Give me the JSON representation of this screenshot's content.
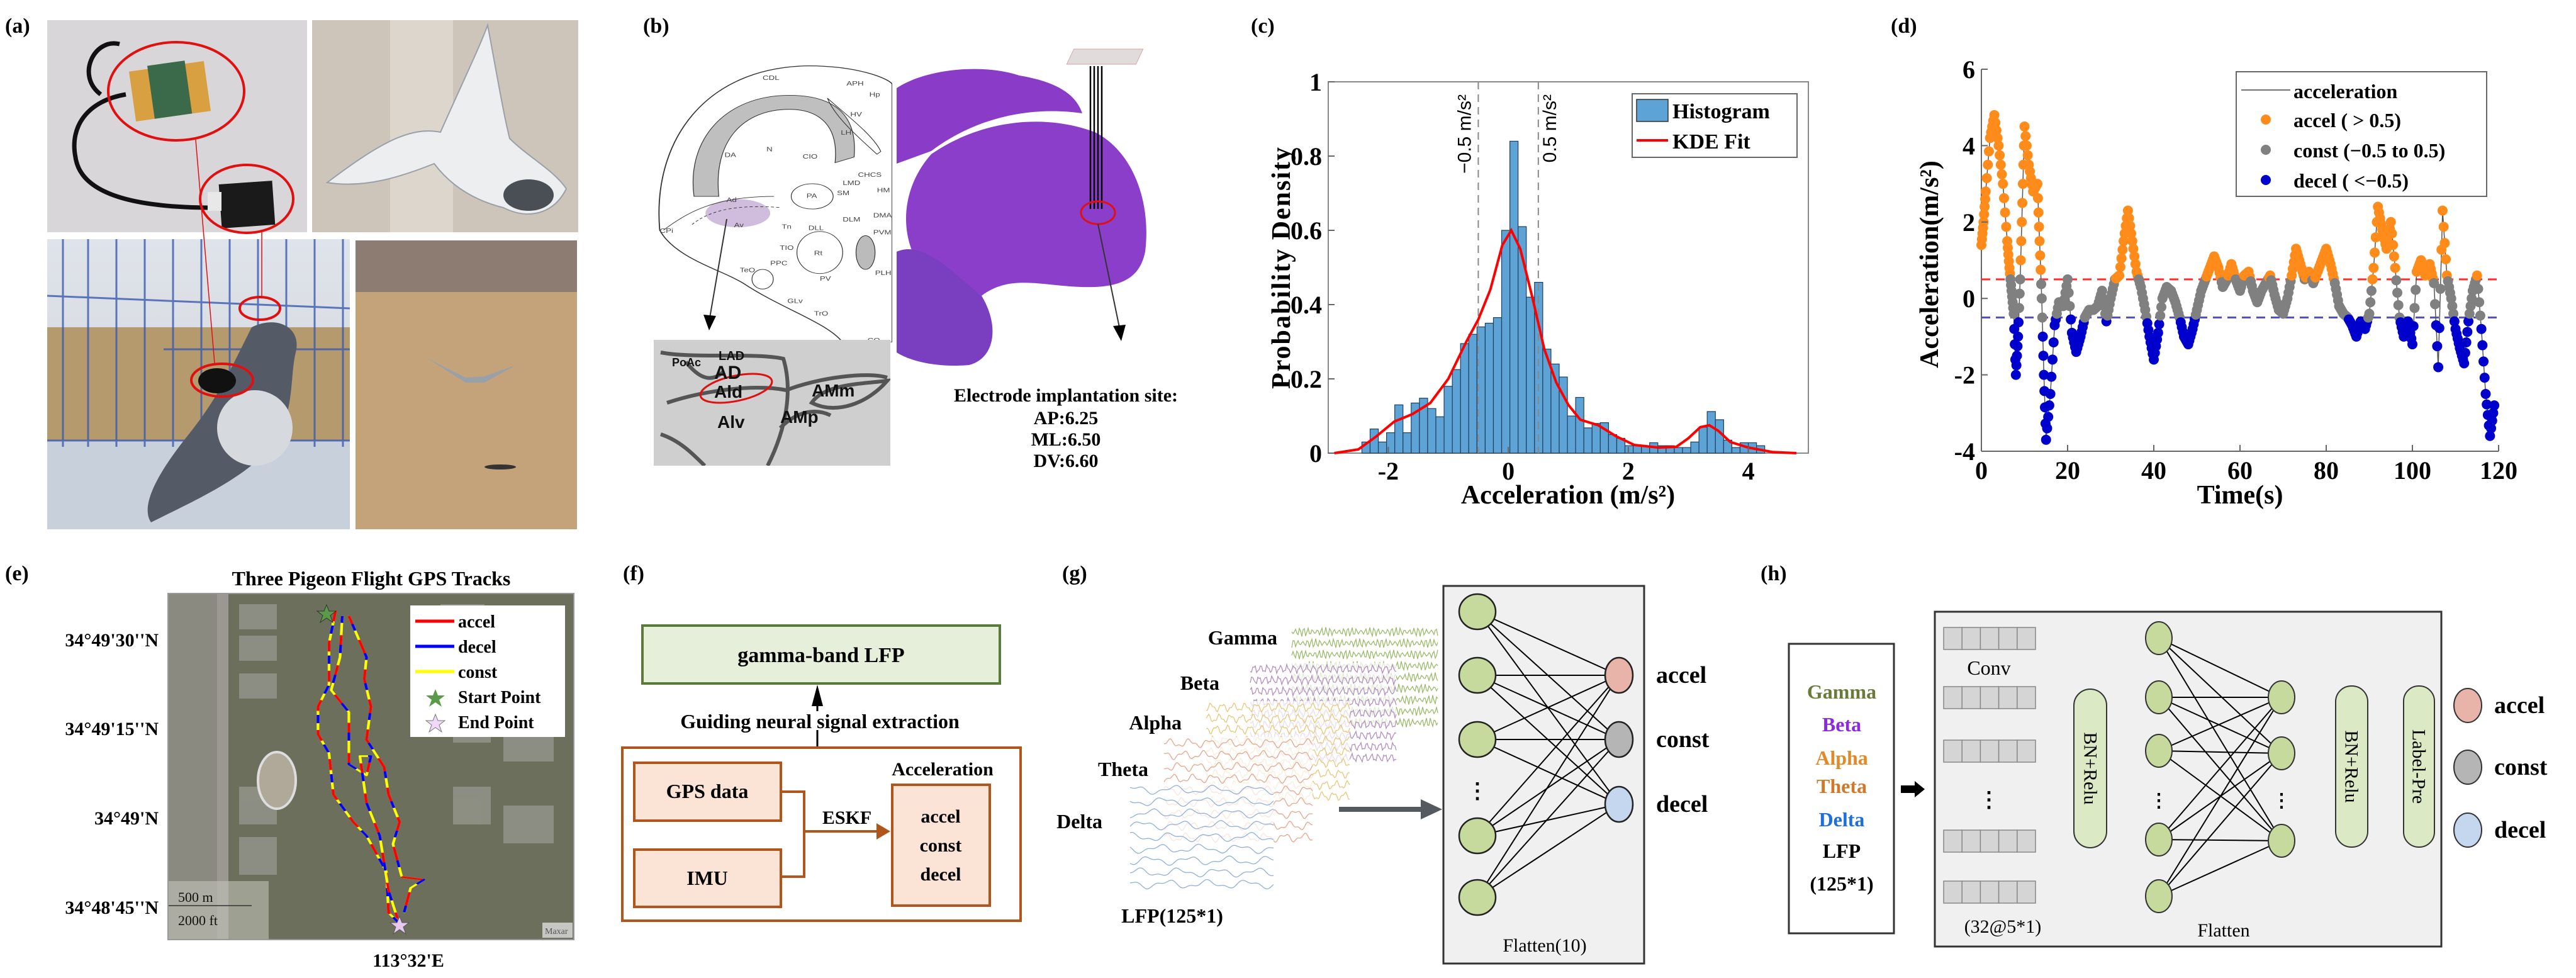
{
  "panel_labels": {
    "a": "(a)",
    "b": "(b)",
    "c": "(c)",
    "d": "(d)",
    "e": "(e)",
    "f": "(f)",
    "g": "(g)",
    "h": "(h)"
  },
  "panel_b": {
    "atlas_labels": [
      "CDL",
      "APH",
      "Hp",
      "HV",
      "LH",
      "DA",
      "N",
      "CIO",
      "CHCS",
      "LMD",
      "HM",
      "PA",
      "SM",
      "DMA",
      "Ad",
      "Av",
      "CPi",
      "Tn",
      "DLL",
      "DLM",
      "PVM",
      "TIO",
      "Rt",
      "PPC",
      "TeO",
      "PLH",
      "PV",
      "GLv",
      "TrO",
      "CO"
    ],
    "inset_labels": [
      "LAD",
      "PoAc",
      "AD",
      "Ald",
      "AMm",
      "AMp",
      "Alv"
    ],
    "electrode": {
      "title": "Electrode implantation site:",
      "ap": "AP:6.25",
      "ml": "ML:6.50",
      "dv": "DV:6.60"
    }
  },
  "chart_data": [
    {
      "type": "bar",
      "panel": "c",
      "title": "",
      "xlabel": "Acceleration (m/s²)",
      "ylabel": "Probability Density",
      "xlim": [
        -3,
        5
      ],
      "ylim": [
        0,
        1
      ],
      "xticks": [
        "-2",
        "0",
        "2",
        "4"
      ],
      "xtick_values": [
        -2,
        0,
        2,
        4
      ],
      "yticks": [
        "0",
        "0.2",
        "0.4",
        "0.6",
        "0.8",
        "1"
      ],
      "ytick_values": [
        0,
        0.2,
        0.4,
        0.6,
        0.8,
        1
      ],
      "legend": {
        "position": "top-right",
        "entries": [
          "Histogram",
          "KDE Fit"
        ]
      },
      "threshold_lines": [
        {
          "value": -0.5,
          "label": "−0.5 m/s²"
        },
        {
          "value": 0.5,
          "label": "0.5 m/s²"
        }
      ],
      "histogram": {
        "bin_start": -2.44,
        "bin_width": 0.137,
        "density": [
          0.03,
          0.065,
          0.03,
          0.055,
          0.13,
          0.055,
          0.135,
          0.148,
          0.12,
          0.098,
          0.18,
          0.225,
          0.295,
          0.32,
          0.34,
          0.35,
          0.365,
          0.6,
          0.84,
          0.61,
          0.42,
          0.46,
          0.28,
          0.24,
          0.205,
          0.1,
          0.15,
          0.068,
          0.08,
          0.082,
          0.05,
          0.04,
          0.02,
          0.02,
          0.02,
          0.028,
          0.02,
          0.02,
          0.015,
          0.015,
          0.03,
          0.07,
          0.112,
          0.09,
          0.035,
          0.015,
          0.028,
          0.028,
          0.02
        ]
      },
      "kde": {
        "x": [
          -2.9,
          -2.5,
          -2.2,
          -1.9,
          -1.6,
          -1.3,
          -1.0,
          -0.7,
          -0.5,
          -0.3,
          -0.1,
          0.05,
          0.2,
          0.4,
          0.6,
          0.8,
          1.0,
          1.2,
          1.5,
          1.8,
          2.1,
          2.5,
          2.8,
          3.0,
          3.2,
          3.35,
          3.5,
          3.7,
          4.0,
          4.4,
          4.8
        ],
        "y": [
          0,
          0.01,
          0.045,
          0.085,
          0.105,
          0.135,
          0.2,
          0.3,
          0.36,
          0.44,
          0.56,
          0.6,
          0.55,
          0.42,
          0.28,
          0.19,
          0.13,
          0.09,
          0.075,
          0.045,
          0.022,
          0.015,
          0.017,
          0.04,
          0.07,
          0.075,
          0.06,
          0.03,
          0.015,
          0.003,
          0
        ]
      },
      "colors": {
        "bar": "#5da3d5",
        "kde": "#ff0000"
      }
    },
    {
      "type": "scatter",
      "panel": "d",
      "xlabel": "Time(s)",
      "ylabel": "Acceleration(m/s²)",
      "xlim": [
        0,
        120
      ],
      "ylim": [
        -4,
        6
      ],
      "xticks": [
        "0",
        "20",
        "40",
        "60",
        "80",
        "100",
        "120"
      ],
      "xtick_values": [
        0,
        20,
        40,
        60,
        80,
        100,
        120
      ],
      "yticks": [
        "-4",
        "-2",
        "0",
        "2",
        "4",
        "6"
      ],
      "ytick_values": [
        -4,
        -2,
        0,
        2,
        4,
        6
      ],
      "thresholds": {
        "upper": 0.5,
        "lower": -0.5
      },
      "legend": {
        "position": "top-right",
        "entries": [
          "acceleration",
          "accel ( > 0.5)",
          "const (−0.5 to 0.5)",
          "decel ( <−0.5)"
        ]
      },
      "colors": {
        "accel": "#ff8c1a",
        "const": "#808080",
        "decel": "#0000cd",
        "upper_line": "#ff3030",
        "lower_line": "#5050d0"
      },
      "time": [
        0,
        0.5,
        1,
        2,
        3,
        4,
        5,
        6,
        6.5,
        7,
        7.5,
        8,
        8.5,
        9,
        9.5,
        10,
        11,
        12,
        13,
        13.5,
        14,
        14.5,
        15,
        16,
        17,
        18,
        19,
        20,
        21,
        22,
        23,
        24,
        25,
        26,
        27,
        28,
        29,
        30,
        31,
        32,
        33,
        34,
        35,
        36,
        37,
        38,
        39,
        40,
        41,
        42,
        43,
        44,
        45,
        46,
        47,
        48,
        49,
        50,
        51,
        52,
        53,
        54,
        55,
        56,
        57,
        58,
        59,
        60,
        61,
        62,
        63,
        64,
        65,
        66,
        67,
        68,
        69,
        70,
        71,
        72,
        73,
        74,
        75,
        76,
        77,
        78,
        79,
        80,
        81,
        82,
        83,
        84,
        85,
        86,
        87,
        88,
        89,
        90,
        91,
        92,
        93,
        94,
        95,
        96,
        97,
        98,
        99,
        100,
        101,
        102,
        103,
        104,
        105,
        106,
        107,
        108,
        109,
        110,
        111,
        112,
        113,
        114,
        115,
        116,
        117,
        118,
        119
      ],
      "acceleration": [
        1.4,
        2,
        2.8,
        4.2,
        4.8,
        4,
        3,
        1.5,
        0.8,
        0.2,
        -0.4,
        -2,
        -1,
        0.5,
        2.5,
        4.5,
        3.5,
        2.8,
        3,
        1.5,
        0,
        -2,
        -3.7,
        -2.5,
        -0.7,
        -0.1,
        -0.2,
        0.5,
        -0.9,
        -1.4,
        -1,
        -0.5,
        -0.3,
        -0.3,
        -0.2,
        0.2,
        -0.6,
        0,
        0.5,
        0.6,
        1.5,
        2.3,
        1.5,
        0.7,
        0.3,
        -0.3,
        -1,
        -1.6,
        -0.9,
        0,
        0.3,
        0.2,
        -0.1,
        -0.5,
        -1,
        -1.2,
        -0.8,
        -0.3,
        0.2,
        0.5,
        0.8,
        1.1,
        0.8,
        0.3,
        0.5,
        0.9,
        0.5,
        0.2,
        0.6,
        0.7,
        0.2,
        -0.1,
        0.2,
        0.4,
        0.6,
        0.1,
        -0.3,
        -0.4,
        0,
        0.6,
        1.3,
        0.9,
        0.5,
        0.7,
        0.4,
        0.7,
        1.0,
        1.3,
        0.9,
        0.4,
        -0.2,
        -0.4,
        -0.5,
        -0.7,
        -1.0,
        -0.6,
        -0.8,
        -0.4,
        0.8,
        2.4,
        1.8,
        1.3,
        2.0,
        0.8,
        -0.5,
        -1.0,
        -0.6,
        -1.2,
        0.7,
        1.0,
        0.6,
        0.9,
        0.4,
        -1.8,
        2.3,
        0.6,
        0.0,
        -0.8,
        -1.3,
        -1.7,
        -0.6,
        0.2,
        0.6,
        -0.8,
        -2.5,
        -3.6,
        -2.8
      ]
    }
  ],
  "panel_e": {
    "title": "Three Pigeon Flight GPS Tracks",
    "lat_ticks": [
      "34°49'30''N",
      "34°49'15''N",
      "34°49'N",
      "34°48'45''N"
    ],
    "lon_tick": "113°32'E",
    "legend": [
      "accel",
      "decel",
      "const",
      "Start Point",
      "End Point"
    ],
    "scale": [
      "500 m",
      "2000 ft"
    ],
    "attribution": "Maxar",
    "colors": {
      "accel": "#ff0000",
      "decel": "#0000ff",
      "const": "#ffff00",
      "start": "#5a9a4a",
      "end": "#e8c8f0"
    }
  },
  "panel_f": {
    "top_box": "gamma-band LFP",
    "guide_text": "Guiding neural signal extraction",
    "gps": "GPS data",
    "imu": "IMU",
    "eskf": "ESKF",
    "accel_title": "Acceleration",
    "classes": [
      "accel",
      "const",
      "decel"
    ]
  },
  "panel_g": {
    "bands": [
      "Gamma",
      "Beta",
      "Alpha",
      "Theta",
      "Delta"
    ],
    "input": "LFP(125*1)",
    "layer": "Flatten(10)",
    "outputs": [
      "accel",
      "const",
      "decel"
    ],
    "ellipsis": "⋮"
  },
  "panel_h": {
    "inputs": [
      "Gamma",
      "Beta",
      "Alpha",
      "Theta",
      "Delta",
      "LFP",
      "(125*1)"
    ],
    "input_colors": [
      "#6b7a3a",
      "#8a2be2",
      "#e08a2a",
      "#d2782a",
      "#1e6fdc",
      "#000000",
      "#000000"
    ],
    "conv": "Conv",
    "conv_shape": "(32@5*1)",
    "bn1": "BN+Relu",
    "flatten": "Flatten",
    "bn2": "BN+Relu",
    "label_pre": "Label-Pre",
    "outputs": [
      "accel",
      "const",
      "decel"
    ],
    "ellipsis": "⋮"
  }
}
